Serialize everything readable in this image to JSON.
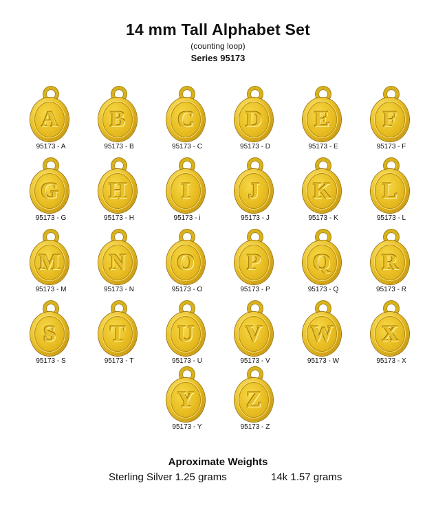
{
  "header": {
    "title": "14 mm Tall Alphabet Set",
    "subtitle": "(counting loop)",
    "series": "Series 95173"
  },
  "charms": [
    {
      "letter": "A",
      "code": "95173 - A"
    },
    {
      "letter": "B",
      "code": "95173 - B"
    },
    {
      "letter": "C",
      "code": "95173 - C"
    },
    {
      "letter": "D",
      "code": "95173 - D"
    },
    {
      "letter": "E",
      "code": "95173 - E"
    },
    {
      "letter": "F",
      "code": "95173 - F"
    },
    {
      "letter": "G",
      "code": "95173 - G"
    },
    {
      "letter": "H",
      "code": "95173 - H"
    },
    {
      "letter": "I",
      "code": "95173 - i"
    },
    {
      "letter": "J",
      "code": "95173 - J"
    },
    {
      "letter": "K",
      "code": "95173 - K"
    },
    {
      "letter": "L",
      "code": "95173 - L"
    },
    {
      "letter": "M",
      "code": "95173 - M"
    },
    {
      "letter": "N",
      "code": "95173 - N"
    },
    {
      "letter": "O",
      "code": "95173 - O"
    },
    {
      "letter": "P",
      "code": "95173 - P"
    },
    {
      "letter": "Q",
      "code": "95173 - Q"
    },
    {
      "letter": "R",
      "code": "95173 - R"
    },
    {
      "letter": "S",
      "code": "95173 - S"
    },
    {
      "letter": "T",
      "code": "95173 - T"
    },
    {
      "letter": "U",
      "code": "95173 - U"
    },
    {
      "letter": "V",
      "code": "95173 - V"
    },
    {
      "letter": "W",
      "code": "95173 - W"
    },
    {
      "letter": "X",
      "code": "95173 - X"
    },
    {
      "letter": "Y",
      "code": "95173 - Y"
    },
    {
      "letter": "Z",
      "code": "95173 - Z"
    }
  ],
  "weights": {
    "title": "Aproximate Weights",
    "silver": "Sterling Silver 1.25 grams",
    "gold": "14k  1.57 grams"
  },
  "colors": {
    "gold": "#e8bd22",
    "gold_dark": "#a07a08"
  }
}
